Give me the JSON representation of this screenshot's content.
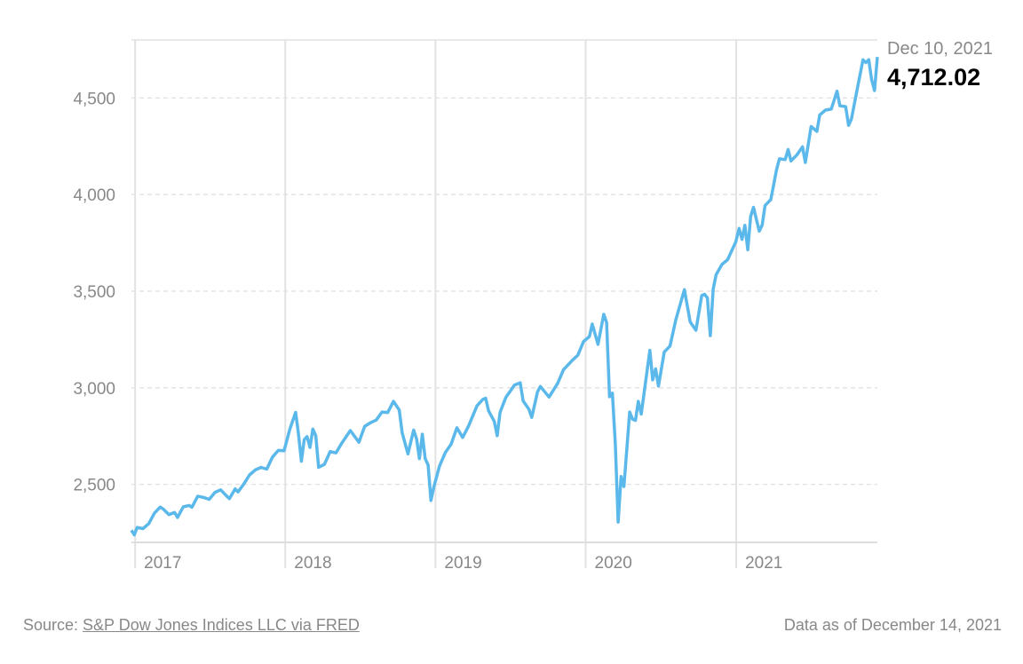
{
  "chart_data": {
    "type": "line",
    "title": "",
    "xlabel": "",
    "ylabel": "",
    "ylim": [
      2200,
      4800
    ],
    "xlim": [
      "2016-12-23",
      "2021-12-10"
    ],
    "grid": {
      "horizontal": "dashed",
      "vertical_year_lines": true
    },
    "y_ticks": [
      2500,
      3000,
      3500,
      4000,
      4500
    ],
    "y_tick_labels": [
      "2,500",
      "3,000",
      "3,500",
      "4,000",
      "4,500"
    ],
    "x_ticks": [
      "2017-01-01",
      "2018-01-01",
      "2019-01-01",
      "2020-01-01",
      "2021-01-01"
    ],
    "x_tick_labels": [
      "2017",
      "2018",
      "2019",
      "2020",
      "2021"
    ],
    "line_color": "#5bb8ea",
    "series": [
      {
        "points": [
          [
            "2016-12-23",
            2263
          ],
          [
            "2016-12-30",
            2239
          ],
          [
            "2017-01-06",
            2277
          ],
          [
            "2017-01-20",
            2271
          ],
          [
            "2017-02-03",
            2297
          ],
          [
            "2017-02-17",
            2351
          ],
          [
            "2017-03-03",
            2383
          ],
          [
            "2017-03-10",
            2373
          ],
          [
            "2017-03-24",
            2344
          ],
          [
            "2017-04-07",
            2355
          ],
          [
            "2017-04-14",
            2329
          ],
          [
            "2017-04-28",
            2384
          ],
          [
            "2017-05-12",
            2391
          ],
          [
            "2017-05-19",
            2382
          ],
          [
            "2017-06-02",
            2439
          ],
          [
            "2017-06-16",
            2433
          ],
          [
            "2017-06-30",
            2423
          ],
          [
            "2017-07-14",
            2459
          ],
          [
            "2017-07-28",
            2472
          ],
          [
            "2017-08-11",
            2441
          ],
          [
            "2017-08-18",
            2426
          ],
          [
            "2017-09-01",
            2477
          ],
          [
            "2017-09-08",
            2461
          ],
          [
            "2017-09-22",
            2502
          ],
          [
            "2017-10-06",
            2549
          ],
          [
            "2017-10-20",
            2575
          ],
          [
            "2017-11-03",
            2588
          ],
          [
            "2017-11-17",
            2579
          ],
          [
            "2017-12-01",
            2642
          ],
          [
            "2017-12-15",
            2676
          ],
          [
            "2017-12-29",
            2674
          ],
          [
            "2018-01-12",
            2786
          ],
          [
            "2018-01-26",
            2873
          ],
          [
            "2018-02-02",
            2762
          ],
          [
            "2018-02-09",
            2620
          ],
          [
            "2018-02-16",
            2732
          ],
          [
            "2018-02-23",
            2747
          ],
          [
            "2018-03-02",
            2691
          ],
          [
            "2018-03-09",
            2786
          ],
          [
            "2018-03-16",
            2752
          ],
          [
            "2018-03-23",
            2588
          ],
          [
            "2018-04-06",
            2604
          ],
          [
            "2018-04-20",
            2670
          ],
          [
            "2018-05-04",
            2663
          ],
          [
            "2018-05-18",
            2713
          ],
          [
            "2018-06-08",
            2779
          ],
          [
            "2018-06-29",
            2718
          ],
          [
            "2018-07-13",
            2801
          ],
          [
            "2018-07-27",
            2819
          ],
          [
            "2018-08-10",
            2833
          ],
          [
            "2018-08-24",
            2875
          ],
          [
            "2018-09-07",
            2872
          ],
          [
            "2018-09-21",
            2930
          ],
          [
            "2018-10-05",
            2885
          ],
          [
            "2018-10-12",
            2767
          ],
          [
            "2018-10-26",
            2658
          ],
          [
            "2018-11-09",
            2781
          ],
          [
            "2018-11-16",
            2736
          ],
          [
            "2018-11-23",
            2633
          ],
          [
            "2018-11-30",
            2760
          ],
          [
            "2018-12-07",
            2633
          ],
          [
            "2018-12-14",
            2600
          ],
          [
            "2018-12-21",
            2417
          ],
          [
            "2018-12-28",
            2486
          ],
          [
            "2019-01-11",
            2596
          ],
          [
            "2019-01-25",
            2665
          ],
          [
            "2019-02-08",
            2708
          ],
          [
            "2019-02-22",
            2793
          ],
          [
            "2019-03-08",
            2743
          ],
          [
            "2019-03-22",
            2801
          ],
          [
            "2019-04-12",
            2907
          ],
          [
            "2019-04-26",
            2940
          ],
          [
            "2019-05-03",
            2946
          ],
          [
            "2019-05-10",
            2881
          ],
          [
            "2019-05-24",
            2826
          ],
          [
            "2019-05-31",
            2752
          ],
          [
            "2019-06-07",
            2873
          ],
          [
            "2019-06-21",
            2950
          ],
          [
            "2019-07-12",
            3014
          ],
          [
            "2019-07-26",
            3026
          ],
          [
            "2019-08-02",
            2932
          ],
          [
            "2019-08-16",
            2889
          ],
          [
            "2019-08-23",
            2847
          ],
          [
            "2019-09-06",
            2979
          ],
          [
            "2019-09-13",
            3007
          ],
          [
            "2019-10-04",
            2952
          ],
          [
            "2019-10-25",
            3023
          ],
          [
            "2019-11-08",
            3093
          ],
          [
            "2019-11-29",
            3141
          ],
          [
            "2019-12-13",
            3169
          ],
          [
            "2019-12-27",
            3240
          ],
          [
            "2020-01-10",
            3265
          ],
          [
            "2020-01-17",
            3330
          ],
          [
            "2020-01-31",
            3225
          ],
          [
            "2020-02-14",
            3380
          ],
          [
            "2020-02-21",
            3338
          ],
          [
            "2020-02-28",
            2954
          ],
          [
            "2020-03-06",
            2972
          ],
          [
            "2020-03-13",
            2711
          ],
          [
            "2020-03-20",
            2305
          ],
          [
            "2020-03-27",
            2541
          ],
          [
            "2020-04-03",
            2489
          ],
          [
            "2020-04-17",
            2875
          ],
          [
            "2020-04-24",
            2837
          ],
          [
            "2020-05-01",
            2831
          ],
          [
            "2020-05-08",
            2930
          ],
          [
            "2020-05-15",
            2864
          ],
          [
            "2020-06-05",
            3194
          ],
          [
            "2020-06-12",
            3041
          ],
          [
            "2020-06-19",
            3098
          ],
          [
            "2020-06-26",
            3009
          ],
          [
            "2020-07-10",
            3185
          ],
          [
            "2020-07-24",
            3216
          ],
          [
            "2020-08-07",
            3351
          ],
          [
            "2020-08-28",
            3508
          ],
          [
            "2020-09-11",
            3341
          ],
          [
            "2020-09-25",
            3298
          ],
          [
            "2020-10-09",
            3477
          ],
          [
            "2020-10-16",
            3484
          ],
          [
            "2020-10-23",
            3465
          ],
          [
            "2020-10-30",
            3270
          ],
          [
            "2020-11-06",
            3510
          ],
          [
            "2020-11-13",
            3585
          ],
          [
            "2020-11-27",
            3638
          ],
          [
            "2020-12-11",
            3663
          ],
          [
            "2020-12-31",
            3756
          ],
          [
            "2021-01-08",
            3825
          ],
          [
            "2021-01-15",
            3768
          ],
          [
            "2021-01-22",
            3841
          ],
          [
            "2021-01-29",
            3714
          ],
          [
            "2021-02-05",
            3887
          ],
          [
            "2021-02-12",
            3934
          ],
          [
            "2021-02-26",
            3811
          ],
          [
            "2021-03-05",
            3842
          ],
          [
            "2021-03-12",
            3943
          ],
          [
            "2021-03-26",
            3974
          ],
          [
            "2021-04-09",
            4129
          ],
          [
            "2021-04-16",
            4185
          ],
          [
            "2021-04-30",
            4181
          ],
          [
            "2021-05-07",
            4233
          ],
          [
            "2021-05-14",
            4174
          ],
          [
            "2021-05-28",
            4204
          ],
          [
            "2021-06-11",
            4247
          ],
          [
            "2021-06-18",
            4166
          ],
          [
            "2021-07-02",
            4352
          ],
          [
            "2021-07-16",
            4327
          ],
          [
            "2021-07-23",
            4412
          ],
          [
            "2021-08-06",
            4437
          ],
          [
            "2021-08-20",
            4442
          ],
          [
            "2021-09-03",
            4535
          ],
          [
            "2021-09-10",
            4459
          ],
          [
            "2021-09-24",
            4455
          ],
          [
            "2021-10-01",
            4358
          ],
          [
            "2021-10-08",
            4391
          ],
          [
            "2021-10-22",
            4545
          ],
          [
            "2021-11-05",
            4697
          ],
          [
            "2021-11-12",
            4683
          ],
          [
            "2021-11-19",
            4698
          ],
          [
            "2021-11-26",
            4595
          ],
          [
            "2021-12-03",
            4538
          ],
          [
            "2021-12-10",
            4712
          ]
        ]
      }
    ],
    "annotation": {
      "date": "Dec 10, 2021",
      "value": "4,712.02"
    }
  },
  "footer": {
    "source_prefix": "Source: ",
    "source_link": "S&P Dow Jones Indices LLC via FRED",
    "as_of": "Data as of December 14, 2021"
  }
}
